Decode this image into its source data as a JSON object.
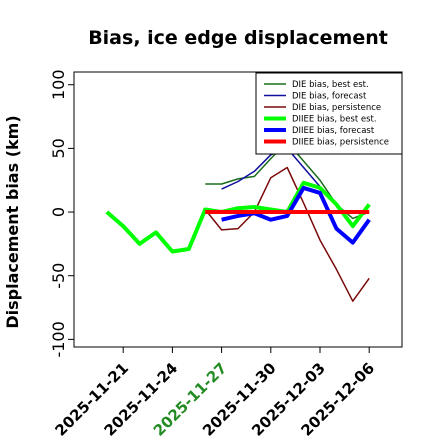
{
  "chart_data": {
    "type": "line",
    "title": "Bias, ice edge displacement",
    "ylabel": "Displacement bias (km)",
    "x": [
      "2025-11-20",
      "2025-11-21",
      "2025-11-22",
      "2025-11-23",
      "2025-11-24",
      "2025-11-25",
      "2025-11-26",
      "2025-11-27",
      "2025-11-28",
      "2025-11-29",
      "2025-11-30",
      "2025-12-01",
      "2025-12-02",
      "2025-12-03",
      "2025-12-04",
      "2025-12-05",
      "2025-12-06"
    ],
    "xlim": [
      "2025-11-18",
      "2025-12-08"
    ],
    "xticks": [
      "2025-11-21",
      "2025-11-24",
      "2025-11-27",
      "2025-11-30",
      "2025-12-03",
      "2025-12-06"
    ],
    "xtick_label_colors": [
      "#000000",
      "#000000",
      "#228b22",
      "#000000",
      "#000000",
      "#000000"
    ],
    "ylim": [
      -106,
      110
    ],
    "yticks": [
      -100,
      -50,
      0,
      50,
      100
    ],
    "legend": "upper right",
    "series": [
      {
        "name": "DIE bias, best est.",
        "color": "#1a6e1a",
        "line_width": 1.5,
        "values": [
          null,
          null,
          null,
          null,
          null,
          null,
          22,
          22,
          26,
          28,
          42,
          55,
          40,
          25,
          6,
          -5,
          0
        ]
      },
      {
        "name": "DIE bias, forecast",
        "color": "#1010a0",
        "line_width": 1.5,
        "values": [
          null,
          null,
          null,
          null,
          null,
          null,
          null,
          18,
          24,
          32,
          45,
          50,
          35,
          20,
          null,
          null,
          null
        ]
      },
      {
        "name": "DIE bias, persistence",
        "color": "#7b0a0a",
        "line_width": 1.5,
        "values": [
          null,
          null,
          null,
          null,
          null,
          null,
          2,
          -14,
          -13,
          0,
          27,
          35,
          7,
          -22,
          -45,
          -70,
          -52
        ]
      },
      {
        "name": "DIIEE bias, best est.",
        "color": "#00ff00",
        "line_width": 4,
        "values": [
          0,
          -11,
          -25,
          -16,
          -31,
          -29,
          2,
          0,
          3,
          4,
          2,
          0,
          23,
          19,
          6,
          -11,
          6
        ]
      },
      {
        "name": "DIIEE bias, forecast",
        "color": "#0000ff",
        "line_width": 4,
        "values": [
          null,
          null,
          null,
          null,
          null,
          null,
          null,
          -6,
          -3,
          -1,
          -6,
          -3,
          19,
          15,
          -13,
          -24,
          -6
        ]
      },
      {
        "name": "DIIEE bias, persistence",
        "color": "#ff0000",
        "line_width": 4,
        "values": [
          null,
          null,
          null,
          null,
          null,
          null,
          0,
          0,
          0,
          0,
          0,
          0,
          0,
          0,
          0,
          0,
          0
        ]
      }
    ]
  }
}
